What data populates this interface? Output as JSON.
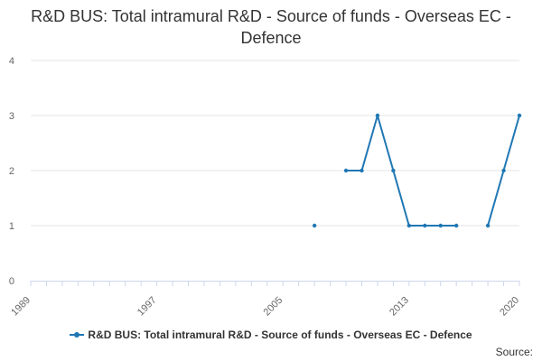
{
  "title": "R&D BUS: Total intramural R&D - Source of funds - Overseas EC - Defence",
  "source_label": "Source:",
  "colors": {
    "series": "#1f77b4",
    "grid": "#e6e6e6",
    "axis": "#ccd6eb"
  },
  "chart_data": {
    "type": "line",
    "title": "R&D BUS: Total intramural R&D - Source of funds - Overseas EC - Defence",
    "xlabel": "",
    "ylabel": "",
    "xlim": [
      1989,
      2020
    ],
    "ylim": [
      0,
      4
    ],
    "x_ticks": [
      1989,
      1997,
      2005,
      2013,
      2020
    ],
    "y_ticks": [
      0,
      1,
      2,
      3,
      4
    ],
    "grid": true,
    "legend_position": "bottom",
    "series": [
      {
        "name": "R&D BUS: Total intramural R&D - Source of funds - Overseas EC - Defence",
        "x": [
          2007,
          2008,
          2009,
          2010,
          2011,
          2012,
          2013,
          2014,
          2015,
          2016,
          2017,
          2018,
          2019,
          2020
        ],
        "y": [
          1,
          null,
          2,
          2,
          3,
          2,
          1,
          1,
          1,
          1,
          null,
          1,
          2,
          3
        ]
      }
    ]
  }
}
